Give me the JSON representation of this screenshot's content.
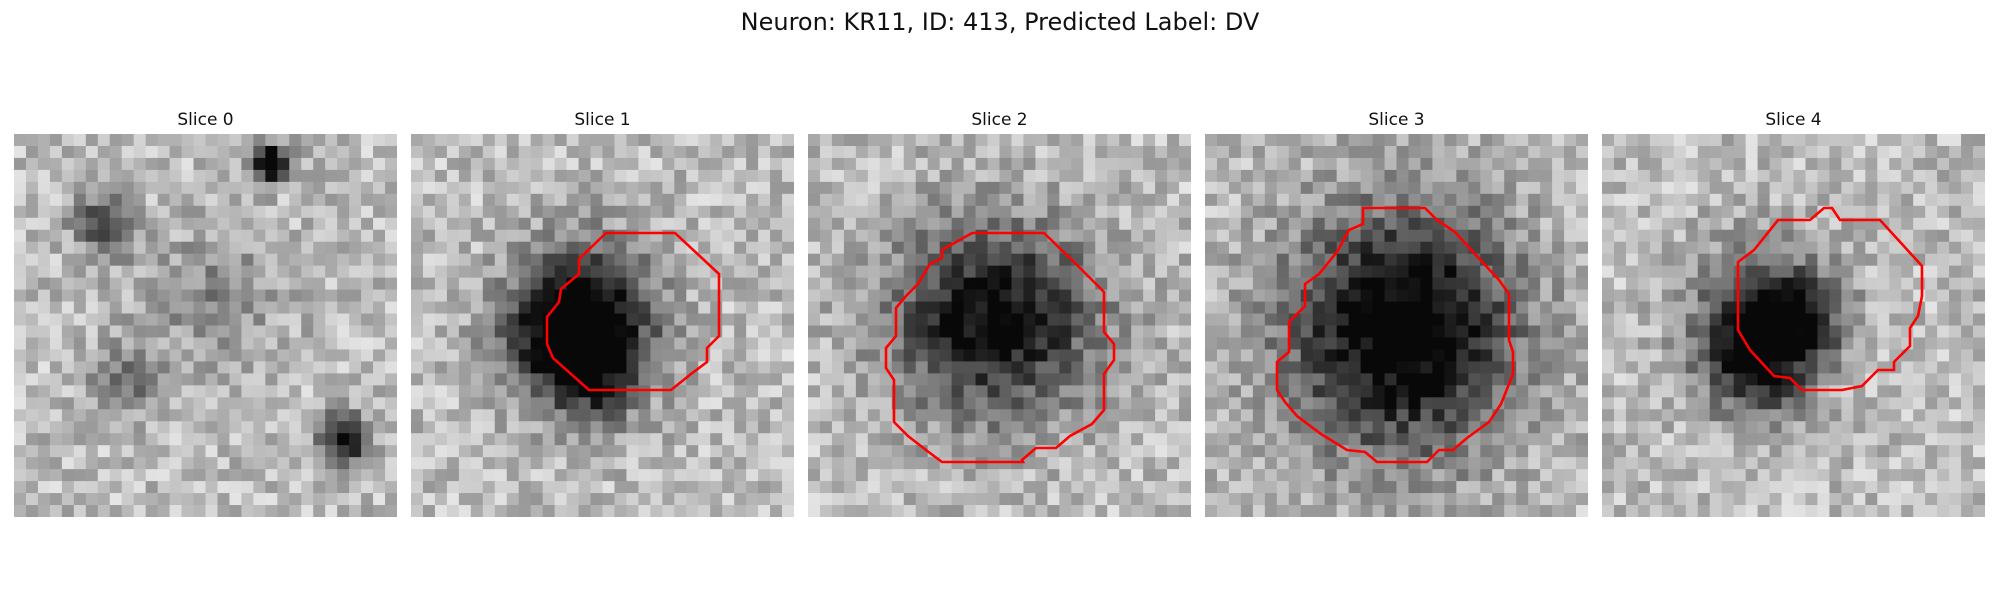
{
  "figure": {
    "title": "Neuron: KR11, ID: 413, Predicted Label: DV"
  },
  "colors": {
    "contour": "#ff0000"
  },
  "panels": [
    {
      "title": "Slice 0",
      "has_contour": false
    },
    {
      "title": "Slice 1",
      "has_contour": true
    },
    {
      "title": "Slice 2",
      "has_contour": true
    },
    {
      "title": "Slice 3",
      "has_contour": true
    },
    {
      "title": "Slice 4",
      "has_contour": true
    }
  ]
}
